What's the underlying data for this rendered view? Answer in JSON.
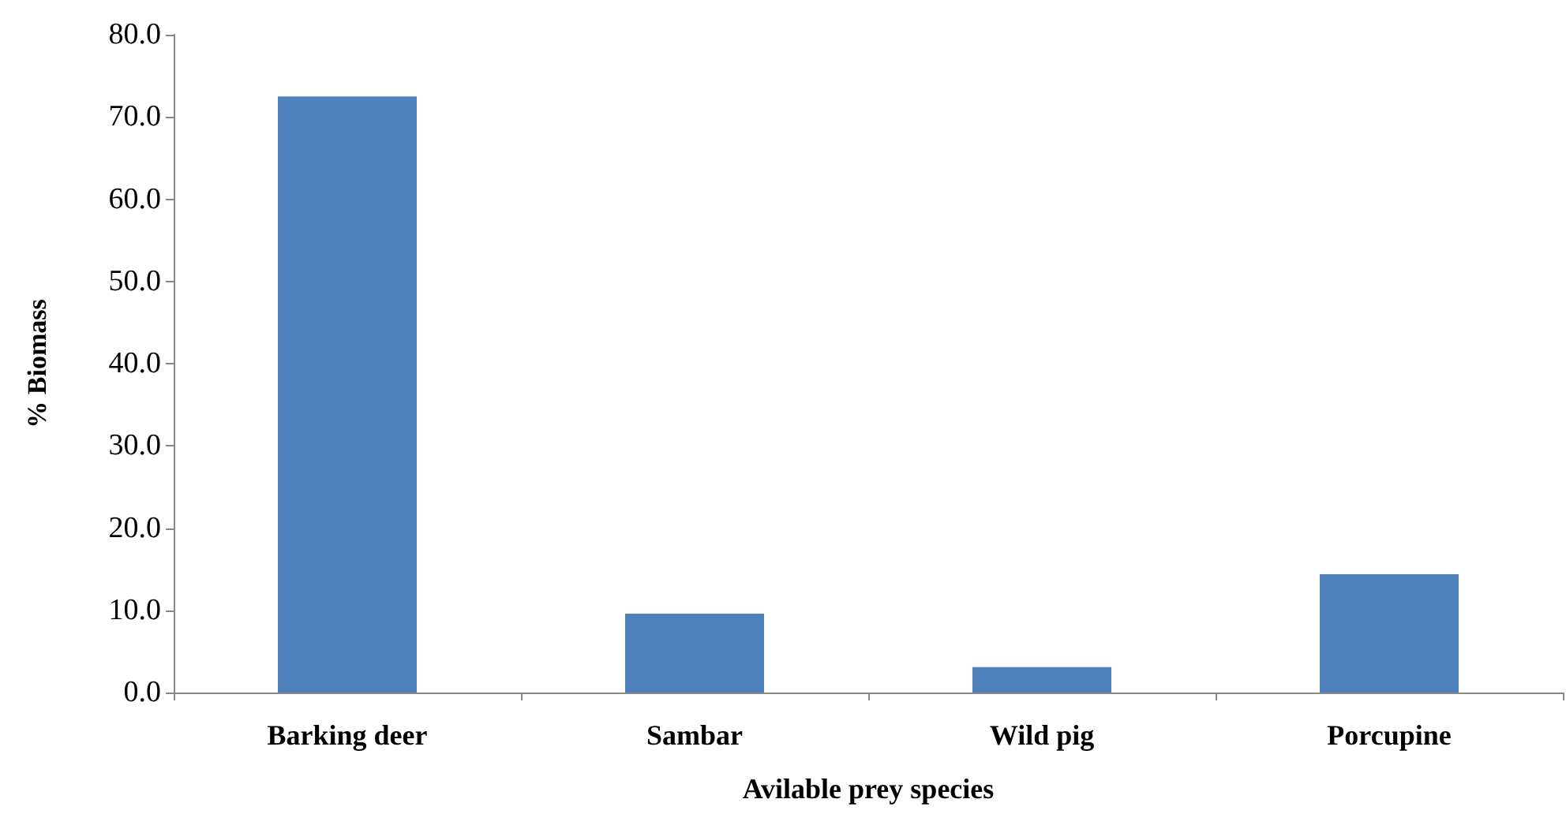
{
  "chart_data": {
    "type": "bar",
    "xlabel": "Avilable prey species",
    "ylabel": "% Biomass",
    "categories": [
      "Barking deer",
      "Sambar",
      "Wild pig",
      "Porcupine"
    ],
    "values": [
      72.5,
      9.6,
      3.1,
      14.4
    ],
    "color": "#4f81bd",
    "ylim": [
      0,
      80
    ],
    "yticks": [
      {
        "value": 0,
        "label": "0.0"
      },
      {
        "value": 10,
        "label": "10.0"
      },
      {
        "value": 20,
        "label": "20.0"
      },
      {
        "value": 30,
        "label": "30.0"
      },
      {
        "value": 40,
        "label": "40.0"
      },
      {
        "value": 50,
        "label": "50.0"
      },
      {
        "value": 60,
        "label": "60.0"
      },
      {
        "value": 70,
        "label": "70.0"
      },
      {
        "value": 80,
        "label": "80.0"
      }
    ],
    "grid": false
  }
}
